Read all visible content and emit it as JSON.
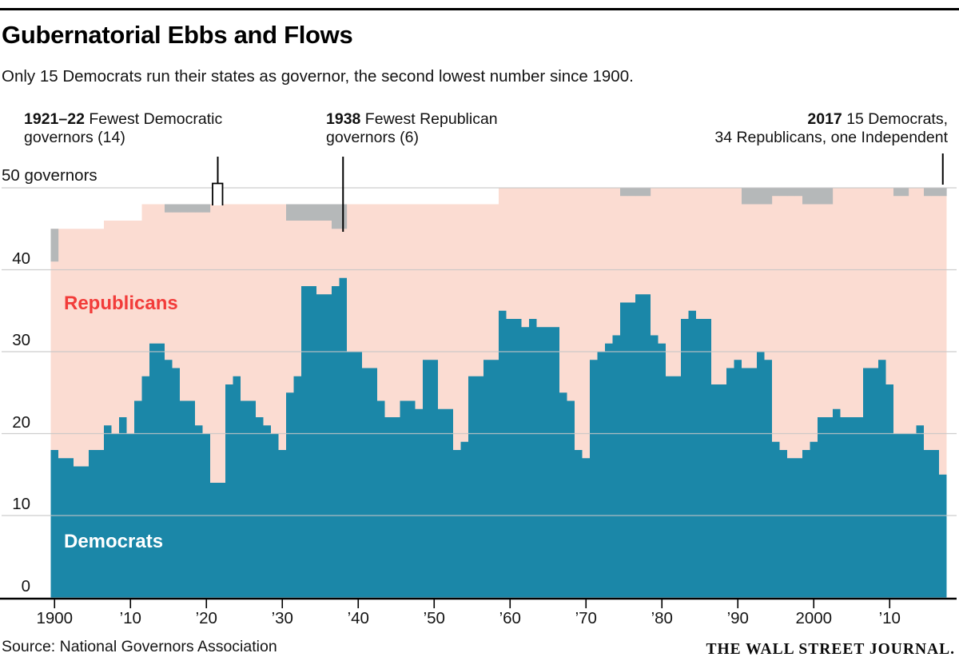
{
  "header": {
    "title": "Gubernatorial Ebbs and Flows",
    "subtitle": "Only 15 Democrats run their states as governor, the second lowest number since 1900."
  },
  "annotations": [
    {
      "line1_bold": "1921–22",
      "line1_rest": " Fewest Democratic",
      "line2": "governors (14)",
      "marker": {
        "type": "line-with-open-box",
        "from_year": 1921,
        "to_year": 1922
      }
    },
    {
      "line1_bold": "1938",
      "line1_rest": " Fewest Republican",
      "line2": "governors (6)",
      "marker": {
        "type": "line",
        "year": 1938
      }
    },
    {
      "line1_bold": "2017",
      "line1_rest": " 15 Democrats,",
      "line2": "34 Republicans, one Independent",
      "marker": {
        "type": "line",
        "year": 2017
      }
    }
  ],
  "y_axis": {
    "top_label": "50 governors",
    "tick_values": [
      40,
      30,
      20,
      10,
      0
    ],
    "gridline_values": [
      50,
      40,
      30,
      20,
      10
    ]
  },
  "x_axis": {
    "ticks": [
      {
        "year": 1900,
        "label": "1900"
      },
      {
        "year": 1910,
        "label": "’10"
      },
      {
        "year": 1920,
        "label": "’20"
      },
      {
        "year": 1930,
        "label": "’30"
      },
      {
        "year": 1940,
        "label": "’40"
      },
      {
        "year": 1950,
        "label": "’50"
      },
      {
        "year": 1960,
        "label": "’60"
      },
      {
        "year": 1970,
        "label": "’70"
      },
      {
        "year": 1980,
        "label": "’80"
      },
      {
        "year": 1990,
        "label": "’90"
      },
      {
        "year": 2000,
        "label": "2000"
      },
      {
        "year": 2010,
        "label": "’10"
      }
    ]
  },
  "series_labels": {
    "republicans": "Republicans",
    "democrats": "Democrats"
  },
  "footer": {
    "source": "Source: National Governors Association",
    "brand": "THE WALL STREET JOURNAL."
  },
  "colors": {
    "democrat": "#1b87a8",
    "republican": "#fbdcd2",
    "other": "#b5b8b9",
    "gridline": "#c6c6c6",
    "axis": "#000000",
    "label_red": "#f23c3a"
  },
  "chart_data": {
    "type": "area",
    "title": "Gubernatorial Ebbs and Flows",
    "stacking": "Democrats on bottom (blue), Republicans middle (pink), other/independent top (gray); top envelope = total number of state governors",
    "x_start": 1900,
    "x_end": 2017,
    "ylim": [
      0,
      50
    ],
    "grid": true,
    "democrats": [
      18,
      17,
      17,
      16,
      16,
      18,
      18,
      21,
      20,
      22,
      20,
      24,
      27,
      31,
      31,
      29,
      28,
      24,
      24,
      21,
      20,
      14,
      14,
      26,
      27,
      24,
      24,
      22,
      21,
      20,
      18,
      25,
      27,
      38,
      38,
      37,
      37,
      38,
      39,
      30,
      30,
      28,
      28,
      24,
      22,
      22,
      24,
      24,
      23,
      29,
      29,
      23,
      23,
      18,
      19,
      27,
      27,
      29,
      29,
      35,
      34,
      34,
      33,
      34,
      33,
      33,
      33,
      25,
      24,
      18,
      17,
      29,
      30,
      31,
      32,
      36,
      36,
      37,
      37,
      32,
      31,
      27,
      27,
      34,
      35,
      34,
      34,
      26,
      26,
      28,
      29,
      28,
      28,
      30,
      29,
      19,
      18,
      17,
      17,
      18,
      19,
      22,
      22,
      23,
      22,
      22,
      22,
      28,
      28,
      29,
      26,
      20,
      20,
      20,
      21,
      18,
      18,
      15
    ],
    "other": [
      4,
      0,
      0,
      0,
      0,
      0,
      0,
      0,
      0,
      0,
      0,
      0,
      0,
      0,
      0,
      1,
      1,
      1,
      1,
      1,
      1,
      0,
      0,
      0,
      0,
      0,
      0,
      0,
      0,
      0,
      0,
      2,
      2,
      2,
      2,
      2,
      2,
      3,
      3,
      0,
      0,
      0,
      0,
      0,
      0,
      0,
      0,
      0,
      0,
      0,
      0,
      0,
      0,
      0,
      0,
      0,
      0,
      0,
      0,
      0,
      0,
      0,
      0,
      0,
      0,
      0,
      0,
      0,
      0,
      0,
      0,
      0,
      0,
      0,
      0,
      1,
      1,
      1,
      1,
      0,
      0,
      0,
      0,
      0,
      0,
      0,
      0,
      0,
      0,
      0,
      0,
      2,
      2,
      2,
      2,
      1,
      1,
      1,
      1,
      2,
      2,
      2,
      2,
      0,
      0,
      0,
      0,
      0,
      0,
      0,
      0,
      1,
      1,
      0,
      0,
      1,
      1,
      1
    ],
    "total": [
      45,
      45,
      45,
      45,
      45,
      45,
      45,
      46,
      46,
      46,
      46,
      46,
      48,
      48,
      48,
      48,
      48,
      48,
      48,
      48,
      48,
      48,
      48,
      48,
      48,
      48,
      48,
      48,
      48,
      48,
      48,
      48,
      48,
      48,
      48,
      48,
      48,
      48,
      48,
      48,
      48,
      48,
      48,
      48,
      48,
      48,
      48,
      48,
      48,
      48,
      48,
      48,
      48,
      48,
      48,
      48,
      48,
      48,
      48,
      50,
      50,
      50,
      50,
      50,
      50,
      50,
      50,
      50,
      50,
      50,
      50,
      50,
      50,
      50,
      50,
      50,
      50,
      50,
      50,
      50,
      50,
      50,
      50,
      50,
      50,
      50,
      50,
      50,
      50,
      50,
      50,
      50,
      50,
      50,
      50,
      50,
      50,
      50,
      50,
      50,
      50,
      50,
      50,
      50,
      50,
      50,
      50,
      50,
      50,
      50,
      50,
      50,
      50,
      50,
      50,
      50,
      50,
      50
    ],
    "republicans_derived": [
      23,
      28,
      28,
      29,
      29,
      27,
      27,
      25,
      26,
      24,
      26,
      22,
      21,
      17,
      17,
      18,
      19,
      23,
      23,
      26,
      27,
      34,
      34,
      22,
      21,
      24,
      24,
      26,
      27,
      28,
      30,
      21,
      19,
      8,
      8,
      9,
      9,
      7,
      6,
      18,
      18,
      20,
      20,
      24,
      26,
      26,
      24,
      24,
      25,
      19,
      19,
      25,
      25,
      30,
      29,
      21,
      21,
      19,
      19,
      15,
      16,
      16,
      17,
      16,
      17,
      17,
      17,
      25,
      26,
      32,
      33,
      21,
      20,
      19,
      18,
      13,
      13,
      12,
      12,
      18,
      19,
      23,
      23,
      16,
      15,
      16,
      16,
      24,
      24,
      22,
      21,
      20,
      20,
      18,
      19,
      30,
      31,
      32,
      32,
      30,
      29,
      26,
      26,
      27,
      28,
      28,
      28,
      22,
      22,
      21,
      24,
      29,
      29,
      30,
      29,
      31,
      31,
      34
    ]
  }
}
